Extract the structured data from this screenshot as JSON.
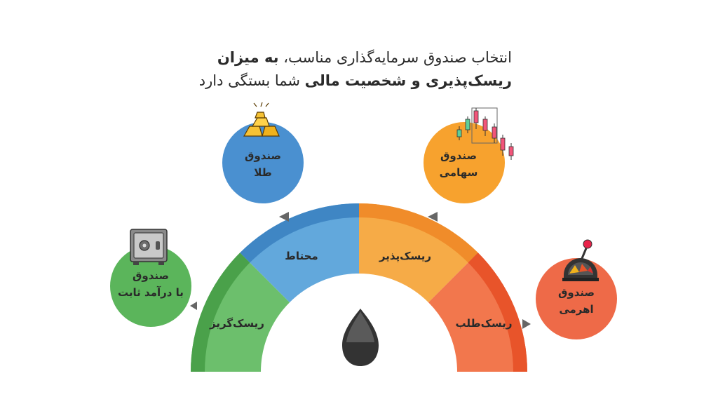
{
  "title": {
    "line1_regular": "انتخاب صندوق سرمایه‌گذاری مناسب، ",
    "line1_bold": "به میزان",
    "line2_bold": "ریسک‌پذیری و شخصیت مالی",
    "line2_regular": " شما بستگی دارد"
  },
  "gauge": {
    "segments": [
      {
        "label": "ریسک‌گریز",
        "color": "#5bb55b"
      },
      {
        "label": "محتاط",
        "color": "#5aa0d8"
      },
      {
        "label": "ریسک‌پذیر",
        "color": "#f5a640"
      },
      {
        "label": "ریسک‌طلب",
        "color": "#f0704a"
      }
    ]
  },
  "funds": [
    {
      "line1": "صندوق",
      "line2": "با درآمد ثابت",
      "color": "#5bb55b",
      "icon": "safe-icon"
    },
    {
      "line1": "صندوق",
      "line2": "طلا",
      "color": "#4a90d0",
      "icon": "gold-bars-icon"
    },
    {
      "line1": "صندوق",
      "line2": "سهامی",
      "color": "#f7a22e",
      "icon": "candlestick-chart-icon"
    },
    {
      "line1": "صندوق",
      "line2": "اهرمی",
      "color": "#ee6a48",
      "icon": "joystick-icon"
    }
  ]
}
